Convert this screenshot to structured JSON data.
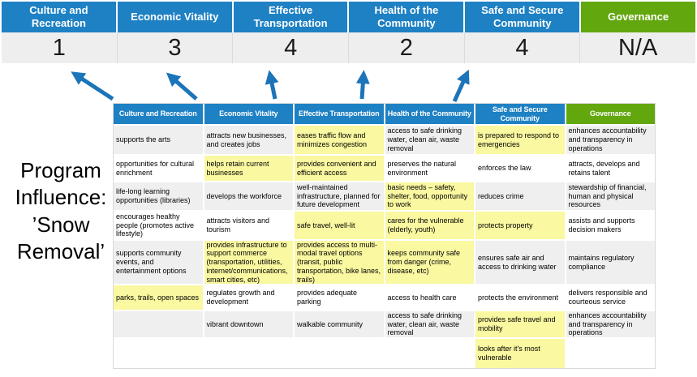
{
  "colors": {
    "blue": "#1E81C4",
    "green": "#63A70E",
    "score_band": "#EEEEEE",
    "row_odd": "#EFEFEF",
    "row_even": "#FFFFFF",
    "highlight": "#FAF8A0",
    "arrow": "#1C74B9"
  },
  "icons": [
    "up-arrow-icon"
  ],
  "scoreboard": {
    "columns": [
      {
        "label": "Culture and Recreation",
        "score": "1",
        "theme": "blue"
      },
      {
        "label": "Economic Vitality",
        "score": "3",
        "theme": "blue"
      },
      {
        "label": "Effective Transportation",
        "score": "4",
        "theme": "blue"
      },
      {
        "label": "Health of the Community",
        "score": "2",
        "theme": "blue"
      },
      {
        "label": "Safe and Secure Community",
        "score": "4",
        "theme": "blue"
      },
      {
        "label": "Governance",
        "score": "N/A",
        "theme": "green"
      }
    ]
  },
  "program_label": {
    "text": "Program\nInfluence:\n’Snow\nRemoval’"
  },
  "matrix": {
    "headers": [
      {
        "label": "Culture and Recreation",
        "theme": "blue"
      },
      {
        "label": "Economic Vitality",
        "theme": "blue"
      },
      {
        "label": "Effective Transportation",
        "theme": "blue"
      },
      {
        "label": "Health of the Community",
        "theme": "blue"
      },
      {
        "label": "Safe and Secure Community",
        "theme": "blue"
      },
      {
        "label": "Governance",
        "theme": "green"
      }
    ],
    "rows": [
      [
        {
          "text": "supports the arts",
          "highlight": false
        },
        {
          "text": "attracts new businesses, and creates jobs",
          "highlight": false
        },
        {
          "text": "eases traffic flow and minimizes congestion",
          "highlight": true
        },
        {
          "text": "access to safe drinking water, clean air, waste removal",
          "highlight": false
        },
        {
          "text": "is prepared to respond to emergencies",
          "highlight": true
        },
        {
          "text": "enhances accountability and transparency in operations",
          "highlight": false
        }
      ],
      [
        {
          "text": "opportunities for cultural enrichment",
          "highlight": false
        },
        {
          "text": "helps retain current businesses",
          "highlight": true
        },
        {
          "text": "provides convenient and efficient access",
          "highlight": true
        },
        {
          "text": "preserves the natural environment",
          "highlight": false
        },
        {
          "text": "enforces the law",
          "highlight": false
        },
        {
          "text": "attracts, develops and retains talent",
          "highlight": false
        }
      ],
      [
        {
          "text": "life-long learning opportunities (libraries)",
          "highlight": false
        },
        {
          "text": "develops the workforce",
          "highlight": false
        },
        {
          "text": "well-maintained infrastructure, planned for future development",
          "highlight": false
        },
        {
          "text": "basic needs – safety, shelter, food, opportunity to work",
          "highlight": true
        },
        {
          "text": "reduces crime",
          "highlight": false
        },
        {
          "text": "stewardship of financial, human and physical resources",
          "highlight": false
        }
      ],
      [
        {
          "text": "encourages healthy people (promotes active lifestyle)",
          "highlight": false
        },
        {
          "text": "attracts visitors and tourism",
          "highlight": false
        },
        {
          "text": "safe travel, well-lit",
          "highlight": true
        },
        {
          "text": "cares for the vulnerable (elderly, youth)",
          "highlight": true
        },
        {
          "text": "protects property",
          "highlight": true
        },
        {
          "text": "assists and supports decision makers",
          "highlight": false
        }
      ],
      [
        {
          "text": "supports community events, and entertainment options",
          "highlight": false
        },
        {
          "text": "provides infrastructure to support commerce (transportation, utilities, internet/communications, smart cities, etc)",
          "highlight": true
        },
        {
          "text": "provides access to multi-modal travel options (transit, public transportation, bike lanes, trails)",
          "highlight": true
        },
        {
          "text": "keeps community safe from danger (crime, disease, etc)",
          "highlight": true
        },
        {
          "text": "ensures safe air and access to drinking water",
          "highlight": false
        },
        {
          "text": "maintains regulatory compliance",
          "highlight": false
        }
      ],
      [
        {
          "text": "parks, trails, open spaces",
          "highlight": true
        },
        {
          "text": "regulates growth and development",
          "highlight": false
        },
        {
          "text": "provides adequate parking",
          "highlight": false
        },
        {
          "text": "access to health care",
          "highlight": false
        },
        {
          "text": "protects the environment",
          "highlight": false
        },
        {
          "text": "delivers responsible and courteous service",
          "highlight": false
        }
      ],
      [
        {
          "text": "",
          "highlight": false
        },
        {
          "text": "vibrant downtown",
          "highlight": false
        },
        {
          "text": "walkable community",
          "highlight": false
        },
        {
          "text": "access to safe drinking water, clean air, waste removal",
          "highlight": false
        },
        {
          "text": "provides safe travel and mobility",
          "highlight": true
        },
        {
          "text": "enhances accountability and transparency in operations",
          "highlight": false
        }
      ],
      [
        {
          "text": "",
          "highlight": false
        },
        {
          "text": "",
          "highlight": false
        },
        {
          "text": "",
          "highlight": false
        },
        {
          "text": "",
          "highlight": false
        },
        {
          "text": "looks after it's most vulnerable",
          "highlight": true
        },
        {
          "text": "",
          "highlight": false
        }
      ]
    ]
  }
}
